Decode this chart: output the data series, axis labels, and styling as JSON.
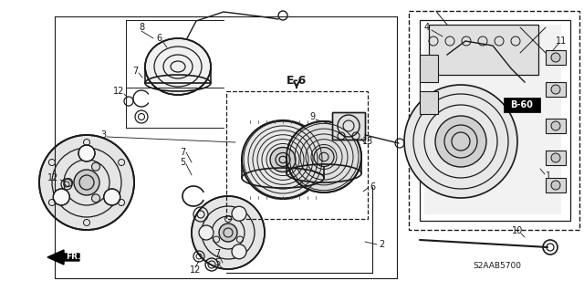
{
  "bg_color": "#ffffff",
  "label_e6": "E-6",
  "label_b60": "B-60",
  "part_code": "S2AAB5700",
  "fig_width": 6.4,
  "fig_height": 3.19,
  "dpi": 100,
  "line_color": "#1a1a1a",
  "gray1": "#888888",
  "gray2": "#555555",
  "gray3": "#cccccc",
  "gray4": "#aaaaaa"
}
